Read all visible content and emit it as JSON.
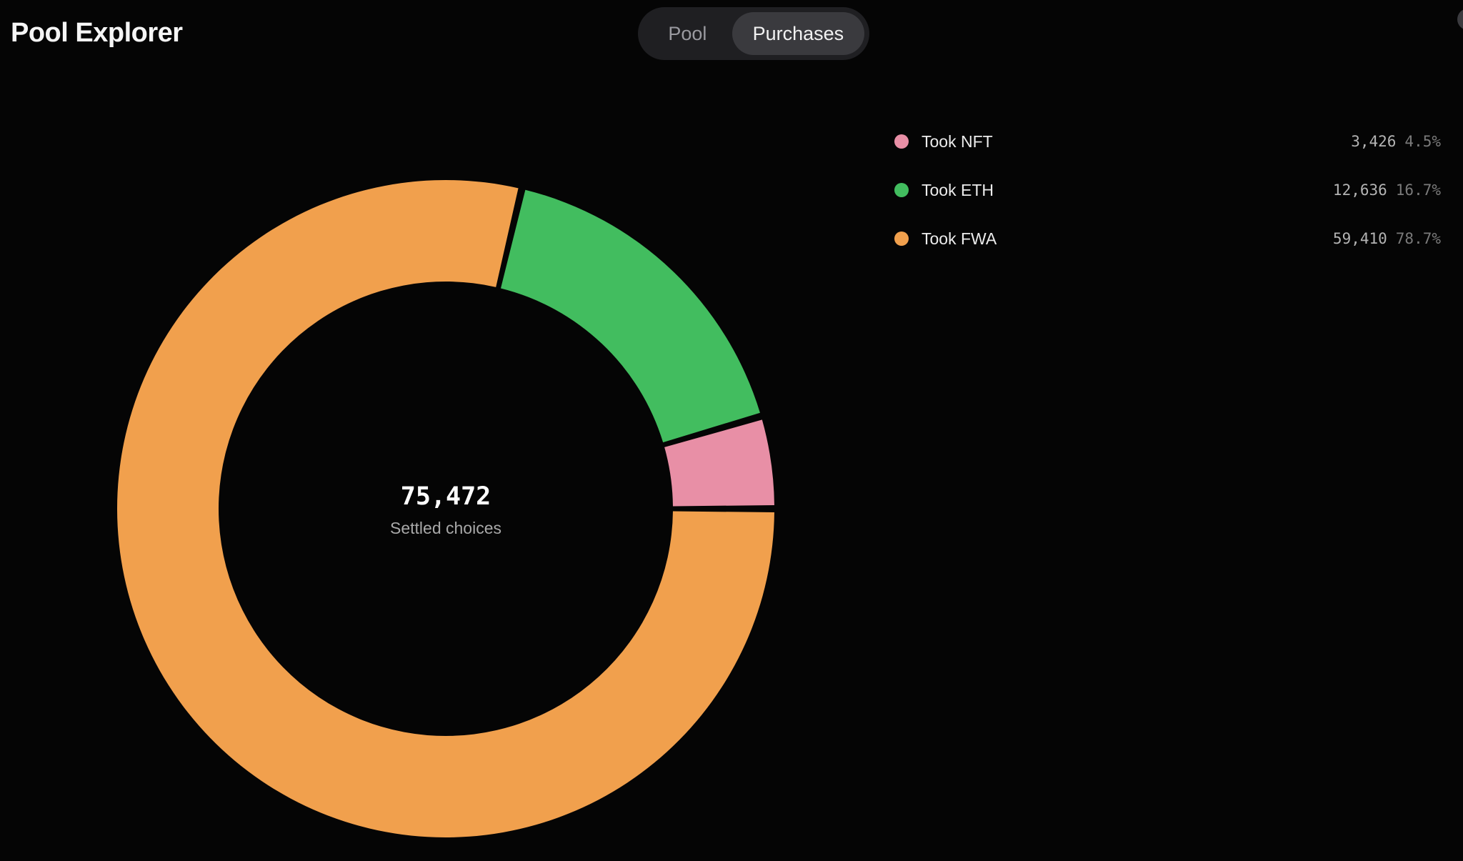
{
  "app": {
    "title": "Pool Explorer"
  },
  "tabs": [
    {
      "label": "Pool",
      "active": false
    },
    {
      "label": "Purchases",
      "active": true
    }
  ],
  "colors": {
    "background": "#050505",
    "nft": "#e88fa6",
    "eth": "#42bd5f",
    "fwa": "#f1a04d"
  },
  "chart_data": {
    "type": "donut",
    "title": "",
    "center": {
      "value": "75,472",
      "label": "Settled choices"
    },
    "legend_position": "right",
    "slices": [
      {
        "label": "Took NFT",
        "value": 3426,
        "value_text": "3,426",
        "percent": 4.5,
        "percent_text": "4.5%",
        "color": "#e88fa6"
      },
      {
        "label": "Took ETH",
        "value": 12636,
        "value_text": "12,636",
        "percent": 16.7,
        "percent_text": "16.7%",
        "color": "#42bd5f"
      },
      {
        "label": "Took FWA",
        "value": 59410,
        "value_text": "59,410",
        "percent": 78.7,
        "percent_text": "78.7%",
        "color": "#f1a04d"
      }
    ]
  }
}
